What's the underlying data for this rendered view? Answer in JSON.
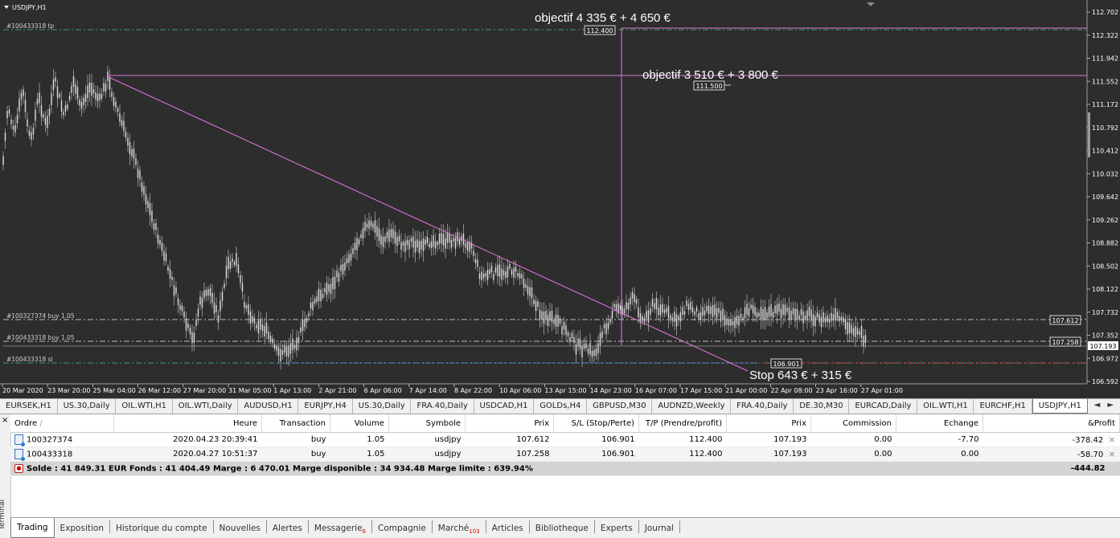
{
  "chart": {
    "title": "USDJPY,H1",
    "colors": {
      "bg": "#2d2d2d",
      "fg": "#ffffff",
      "grid": "#c0c0c0",
      "annot": "#e07ae0",
      "tp_line": "#3aa06e",
      "sl_line": "#ff4040"
    },
    "price_axis": [
      "112.702",
      "112.322",
      "111.942",
      "111.552",
      "111.172",
      "110.792",
      "110.412",
      "110.032",
      "109.642",
      "109.262",
      "108.882",
      "108.502",
      "108.122",
      "107.732",
      "107.352",
      "106.972",
      "106.592"
    ],
    "time_axis": [
      "20 Mar 2020",
      "23 Mar 20:00",
      "25 Mar 04:00",
      "26 Mar 12:00",
      "27 Mar 20:00",
      "31 Mar 05:00",
      "1 Apr 13:00",
      "2 Apr 21:00",
      "6 Apr 06:00",
      "7 Apr 14:00",
      "8 Apr 22:00",
      "10 Apr 06:00",
      "13 Apr 15:00",
      "14 Apr 23:00",
      "16 Apr 07:00",
      "17 Apr 15:00",
      "21 Apr 00:00",
      "22 Apr 08:00",
      "23 Apr 16:00",
      "27 Apr 01:00"
    ],
    "order_labels": {
      "tp": "#100433318 tp",
      "buy1": "#100327374 buy 1.05",
      "buy2": "#100433318 buy 1.05",
      "sl": "#100433318 sl"
    },
    "price_tags": {
      "tp": "112.400",
      "obj2": "111.500",
      "buy1": "107.612",
      "buy2": "107.258",
      "current": "107.193",
      "sl": "106.901"
    },
    "annotations": {
      "objective1": "objectif 4 335 € + 4 650 €",
      "objective2": "objectif 3 510 € + 3 800 €",
      "stop": "Stop 643 € + 315 €"
    }
  },
  "symbol_tabs": [
    "EURSEK,H1",
    "US.30,Daily",
    "OIL.WTI,H1",
    "OIL.WTI,Daily",
    "AUDUSD,H1",
    "EURJPY,H4",
    "US.30,Daily",
    "FRA.40,Daily",
    "USDCAD,H1",
    "GOLDs,H4",
    "GBPUSD,M30",
    "AUDNZD,Weekly",
    "FRA.40,Daily",
    "DE.30,M30",
    "EURCAD,Daily",
    "OIL.WTI,H1",
    "EURCHF,H1",
    "USDJPY,H1"
  ],
  "terminal": {
    "side_label": "Terminal",
    "close": "×",
    "columns": {
      "order": "Ordre",
      "sort": "/",
      "time": "Heure",
      "type": "Transaction",
      "volume": "Volume",
      "symbol": "Symbole",
      "price": "Prix",
      "sl": "S/L (Stop/Perte)",
      "tp": "T/P (Prendre/profit)",
      "price2": "Prix",
      "commission": "Commission",
      "swap": "Echange",
      "profit": "&Profit"
    },
    "rows": [
      {
        "order": "100327374",
        "time": "2020.04.23 20:39:41",
        "type": "buy",
        "volume": "1.05",
        "symbol": "usdjpy",
        "price": "107.612",
        "sl": "106.901",
        "tp": "112.400",
        "price2": "107.193",
        "commission": "0.00",
        "swap": "-7.70",
        "profit": "-378.42"
      },
      {
        "order": "100433318",
        "time": "2020.04.27 10:51:37",
        "type": "buy",
        "volume": "1.05",
        "symbol": "usdjpy",
        "price": "107.258",
        "sl": "106.901",
        "tp": "112.400",
        "price2": "107.193",
        "commission": "0.00",
        "swap": "0.00",
        "profit": "-58.70"
      }
    ],
    "summary": {
      "text": "Solde : 41 849.31 EUR  Fonds : 41 404.49  Marge : 6 470.01  Marge disponible : 34 934.48  Marge limite : 639.94%",
      "total": "-444.82"
    },
    "tabs": [
      {
        "label": "Trading",
        "badge": ""
      },
      {
        "label": "Exposition",
        "badge": ""
      },
      {
        "label": "Historique du compte",
        "badge": ""
      },
      {
        "label": "Nouvelles",
        "badge": ""
      },
      {
        "label": "Alertes",
        "badge": ""
      },
      {
        "label": "Messagerie",
        "badge": "6"
      },
      {
        "label": "Compagnie",
        "badge": ""
      },
      {
        "label": "Marché",
        "badge": "103"
      },
      {
        "label": "Articles",
        "badge": ""
      },
      {
        "label": "Bibliotheque",
        "badge": ""
      },
      {
        "label": "Experts",
        "badge": ""
      },
      {
        "label": "Journal",
        "badge": ""
      }
    ]
  }
}
